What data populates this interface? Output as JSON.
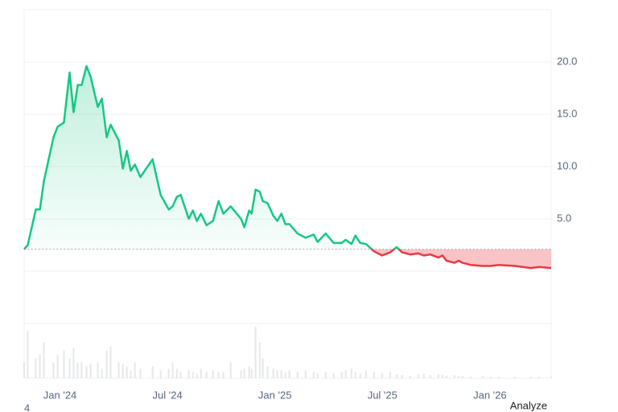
{
  "chart_data": {
    "type": "line",
    "x": [
      -2.0,
      -1.8,
      -1.35,
      -1.12,
      -0.9,
      -0.36,
      -0.13,
      0.22,
      0.54,
      0.76,
      0.99,
      1.21,
      1.48,
      1.71,
      2.11,
      2.34,
      2.61,
      2.83,
      3.28,
      3.51,
      3.73,
      3.95,
      4.18,
      4.49,
      5.17,
      5.62,
      6.07,
      6.29,
      6.52,
      6.74,
      7.19,
      7.42,
      7.64,
      7.87,
      8.18,
      8.54,
      8.85,
      9.12,
      9.53,
      10.11,
      10.29,
      10.56,
      10.7,
      10.92,
      11.15,
      11.32,
      11.59,
      11.91,
      12.13,
      12.36,
      12.58,
      12.81,
      13.26,
      13.71,
      14.16,
      14.38,
      14.83,
      15.28,
      15.73,
      15.95,
      16.27,
      16.49,
      16.76,
      17.08,
      17.53,
      17.98,
      18.43,
      18.79,
      19.1,
      19.55,
      20.0,
      20.31,
      20.67,
      21.12,
      21.35,
      21.57,
      22.02,
      22.25,
      22.47,
      22.92,
      23.59,
      24.04,
      24.49,
      25.39,
      26.29,
      26.74,
      27.42
    ],
    "values": [
      2.1,
      2.5,
      5.9,
      5.9,
      8.6,
      12.8,
      13.8,
      14.2,
      19.0,
      15.2,
      17.8,
      17.8,
      19.6,
      18.6,
      15.7,
      16.5,
      12.8,
      14.0,
      12.5,
      9.8,
      11.5,
      9.6,
      10.2,
      9.0,
      10.7,
      7.3,
      5.9,
      6.2,
      7.1,
      7.3,
      5.0,
      5.8,
      4.8,
      5.5,
      4.4,
      4.8,
      6.7,
      5.5,
      6.2,
      5.0,
      4.2,
      5.8,
      5.5,
      7.8,
      7.6,
      6.7,
      6.5,
      5.3,
      4.8,
      5.5,
      4.5,
      4.5,
      3.6,
      3.2,
      3.5,
      2.8,
      3.6,
      2.7,
      2.7,
      3.0,
      2.6,
      3.4,
      2.7,
      2.6,
      1.9,
      1.5,
      1.8,
      2.3,
      1.8,
      1.6,
      1.7,
      1.5,
      1.6,
      1.3,
      1.5,
      1.0,
      0.8,
      1.0,
      0.8,
      0.6,
      0.5,
      0.5,
      0.6,
      0.5,
      0.3,
      0.4,
      0.3
    ],
    "volume": [
      20,
      60,
      25,
      30,
      45,
      20,
      30,
      35,
      25,
      38,
      20,
      20,
      15,
      18,
      20,
      12,
      35,
      40,
      20,
      18,
      15,
      10,
      20,
      12,
      15,
      10,
      12,
      20,
      12,
      8,
      10,
      8,
      6,
      12,
      8,
      10,
      8,
      8,
      20,
      10,
      12,
      15,
      12,
      65,
      45,
      25,
      15,
      12,
      10,
      10,
      8,
      10,
      8,
      10,
      8,
      6,
      8,
      6,
      8,
      10,
      12,
      8,
      6,
      10,
      8,
      6,
      8,
      5,
      4,
      3,
      5,
      6,
      4,
      5,
      4,
      3,
      4,
      3,
      3,
      2,
      3,
      2,
      2,
      2,
      2,
      2,
      2
    ],
    "baseline": 2.1,
    "up_color": "#16c784",
    "down_color": "#ea3943",
    "xlim": [
      -2.0,
      27.42
    ],
    "xticks": [
      {
        "value": 0,
        "label": "Jan '24"
      },
      {
        "value": 6,
        "label": "Jul '24"
      },
      {
        "value": 12,
        "label": "Jan '25"
      },
      {
        "value": 18,
        "label": "Jul '25"
      },
      {
        "value": 24,
        "label": "Jan '26"
      }
    ],
    "ylim": [
      0,
      25
    ],
    "yticks": [
      {
        "value": 5,
        "label": "5.0"
      },
      {
        "value": 10,
        "label": "10.0"
      },
      {
        "value": 15,
        "label": "15.0"
      },
      {
        "value": 20,
        "label": "20.0"
      }
    ],
    "grid": true,
    "corner_label": "4",
    "button": "Analyze"
  }
}
